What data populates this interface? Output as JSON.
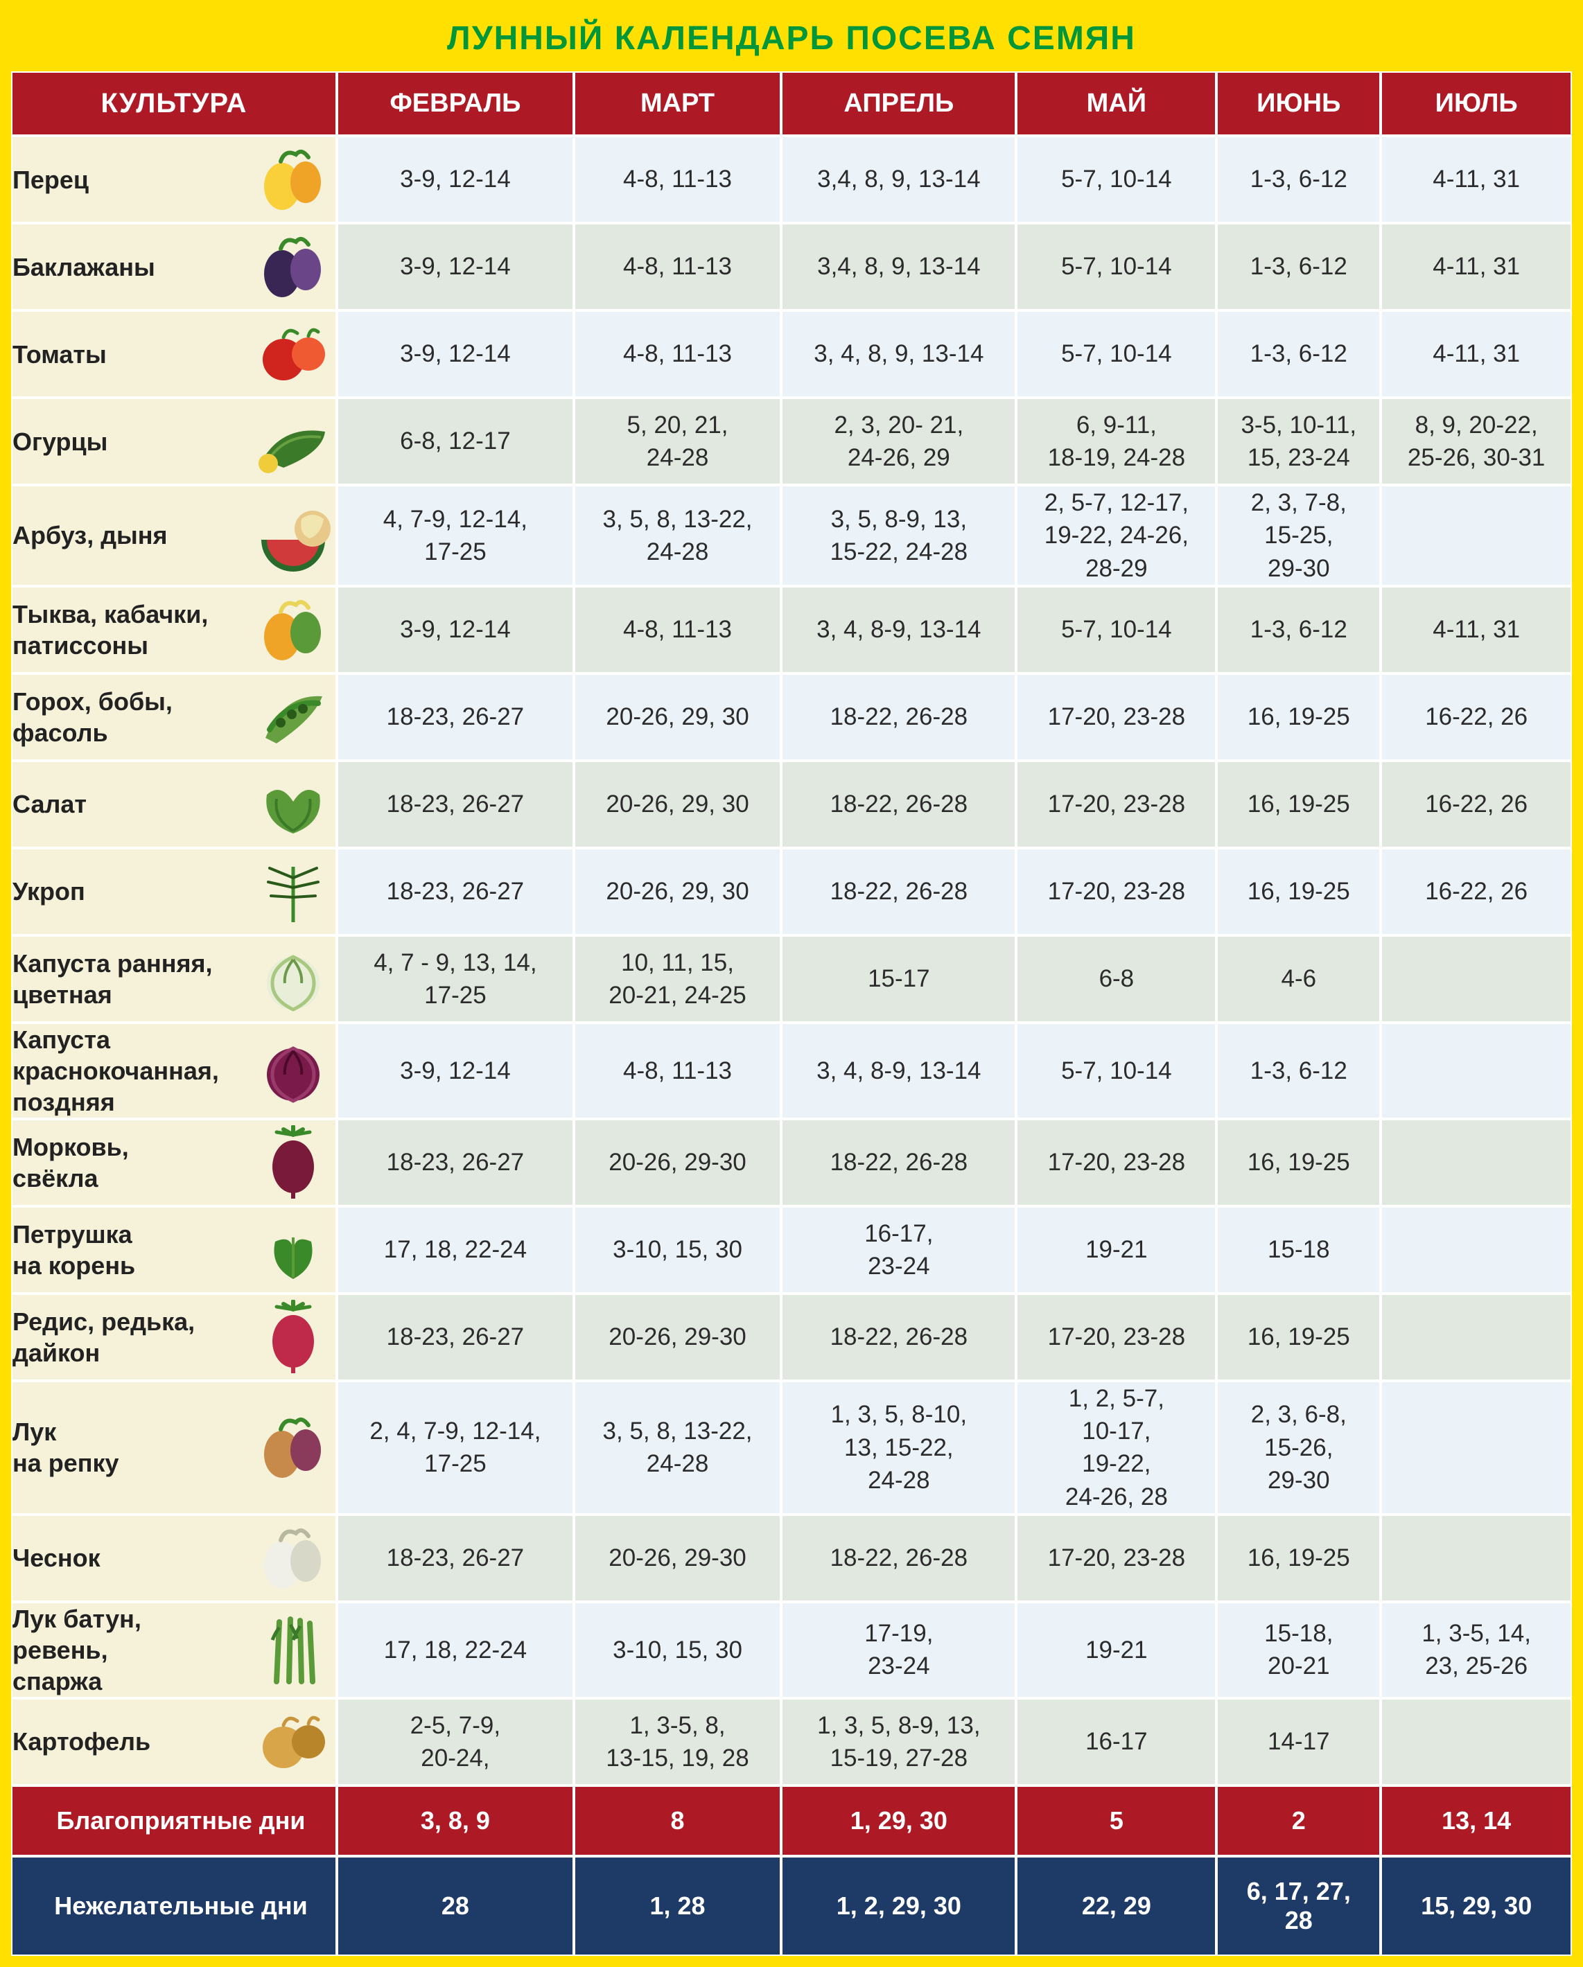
{
  "title": "ЛУННЫЙ КАЛЕНДАРЬ ПОСЕВА СЕМЯН",
  "palette": {
    "outer_bg": "#ffe000",
    "title_color": "#009639",
    "header_bg": "#ad1a26",
    "favorable_bg": "#ad1a26",
    "unfavorable_bg": "#1e3a66",
    "name_col_bg": "#f5f2d9",
    "row_even_bg": "#ebf2f8",
    "row_odd_bg": "#e1e8e0",
    "cell_border": "#ffffff",
    "text_color": "#2b2b2b",
    "title_fontsize": 48,
    "header_fontsize": 38,
    "body_fontsize": 35
  },
  "headers": {
    "culture": "КУЛЬТУРА",
    "months": [
      "ФЕВРАЛЬ",
      "МАРТ",
      "АПРЕЛЬ",
      "МАЙ",
      "ИЮНЬ",
      "ИЮЛЬ"
    ]
  },
  "rows": [
    {
      "name": "Перец",
      "icon": "pepper",
      "values": [
        "3-9, 12-14",
        "4-8, 11-13",
        "3,4, 8, 9, 13-14",
        "5-7, 10-14",
        "1-3, 6-12",
        "4-11, 31"
      ]
    },
    {
      "name": "Баклажаны",
      "icon": "eggplant",
      "values": [
        "3-9, 12-14",
        "4-8, 11-13",
        "3,4, 8, 9, 13-14",
        "5-7, 10-14",
        "1-3, 6-12",
        "4-11, 31"
      ]
    },
    {
      "name": "Томаты",
      "icon": "tomato",
      "values": [
        "3-9, 12-14",
        "4-8, 11-13",
        "3, 4, 8, 9, 13-14",
        "5-7, 10-14",
        "1-3, 6-12",
        "4-11, 31"
      ]
    },
    {
      "name": "Огурцы",
      "icon": "cucumber",
      "values": [
        "6-8, 12-17",
        "5, 20, 21,\n24-28",
        "2, 3, 20- 21,\n24-26, 29",
        "6, 9-11,\n18-19, 24-28",
        "3-5, 10-11,\n15, 23-24",
        "8, 9, 20-22,\n25-26, 30-31"
      ]
    },
    {
      "name": "Арбуз, дыня",
      "icon": "melon",
      "values": [
        "4, 7-9, 12-14,\n17-25",
        "3, 5, 8, 13-22,\n24-28",
        "3, 5, 8-9, 13,\n15-22, 24-28",
        "2, 5-7, 12-17,\n19-22, 24-26,\n28-29",
        "2, 3, 7-8,\n15-25,\n29-30",
        ""
      ]
    },
    {
      "name": "Тыква, кабачки,\nпатиссоны",
      "icon": "squash",
      "values": [
        "3-9, 12-14",
        "4-8, 11-13",
        "3, 4, 8-9, 13-14",
        "5-7, 10-14",
        "1-3, 6-12",
        "4-11, 31"
      ]
    },
    {
      "name": "Горох, бобы,\nфасоль",
      "icon": "beans",
      "values": [
        "18-23, 26-27",
        "20-26, 29, 30",
        "18-22, 26-28",
        "17-20, 23-28",
        "16, 19-25",
        "16-22, 26"
      ]
    },
    {
      "name": "Салат",
      "icon": "lettuce",
      "values": [
        "18-23, 26-27",
        "20-26, 29, 30",
        "18-22, 26-28",
        "17-20, 23-28",
        "16, 19-25",
        "16-22, 26"
      ]
    },
    {
      "name": "Укроп",
      "icon": "dill",
      "values": [
        "18-23, 26-27",
        "20-26, 29, 30",
        "18-22, 26-28",
        "17-20, 23-28",
        "16, 19-25",
        "16-22, 26"
      ]
    },
    {
      "name": "Капуста ранняя,\nцветная",
      "icon": "cabbage-white",
      "values": [
        "4, 7 - 9, 13, 14,\n17-25",
        "10, 11, 15,\n20-21, 24-25",
        "15-17",
        "6-8",
        "4-6",
        ""
      ]
    },
    {
      "name": "Капуста\nкраснокочанная,\nпоздняя",
      "icon": "cabbage-red",
      "values": [
        "3-9, 12-14",
        "4-8, 11-13",
        "3, 4, 8-9, 13-14",
        "5-7, 10-14",
        "1-3, 6-12",
        ""
      ]
    },
    {
      "name": "Морковь,\nсвёкла",
      "icon": "beet",
      "values": [
        "18-23, 26-27",
        "20-26, 29-30",
        "18-22, 26-28",
        "17-20, 23-28",
        "16, 19-25",
        ""
      ]
    },
    {
      "name": "Петрушка\nна корень",
      "icon": "parsley",
      "values": [
        "17, 18, 22-24",
        "3-10, 15, 30",
        "16-17,\n23-24",
        "19-21",
        "15-18",
        ""
      ]
    },
    {
      "name": "Редис, редька, дайкон",
      "icon": "radish",
      "values": [
        "18-23, 26-27",
        "20-26, 29-30",
        "18-22, 26-28",
        "17-20, 23-28",
        "16, 19-25",
        ""
      ]
    },
    {
      "name": "Лук\nна репку",
      "icon": "onion",
      "values": [
        "2, 4, 7-9, 12-14,\n17-25",
        "3, 5, 8, 13-22,\n24-28",
        "1, 3, 5, 8-10,\n13, 15-22,\n24-28",
        "1, 2, 5-7,\n10-17,\n19-22,\n24-26, 28",
        "2, 3, 6-8,\n15-26,\n29-30",
        ""
      ]
    },
    {
      "name": "Чеснок",
      "icon": "garlic",
      "values": [
        "18-23, 26-27",
        "20-26, 29-30",
        "18-22, 26-28",
        "17-20, 23-28",
        "16, 19-25",
        ""
      ]
    },
    {
      "name": "Лук батун, ревень,\nспаржа",
      "icon": "asparagus",
      "values": [
        "17, 18, 22-24",
        "3-10, 15, 30",
        "17-19,\n23-24",
        "19-21",
        "15-18,\n20-21",
        "1, 3-5, 14,\n23, 25-26"
      ]
    },
    {
      "name": "Картофель",
      "icon": "potato",
      "values": [
        "2-5, 7-9,\n20-24,",
        "1, 3-5, 8,\n13-15, 19, 28",
        "1, 3, 5, 8-9, 13,\n15-19, 27-28",
        "16-17",
        "14-17",
        ""
      ]
    }
  ],
  "summary": {
    "favorable": {
      "label": "Благоприятные дни",
      "values": [
        "3, 8, 9",
        "8",
        "1, 29, 30",
        "5",
        "2",
        "13, 14"
      ]
    },
    "unfavorable": {
      "label": "Нежелательные дни",
      "values": [
        "28",
        "1, 28",
        "1, 2, 29, 30",
        "22, 29",
        "6, 17, 27,\n28",
        "15, 29, 30"
      ]
    }
  },
  "icons": {
    "pepper": {
      "fills": [
        "#f9cf3a",
        "#f0a427",
        "#3a8a2a"
      ],
      "kind": "pair-bulb"
    },
    "eggplant": {
      "fills": [
        "#3a2655",
        "#6a4688",
        "#3a8a2a"
      ],
      "kind": "pair-bulb"
    },
    "tomato": {
      "fills": [
        "#d0251f",
        "#ef5a33",
        "#3a8a2a"
      ],
      "kind": "pair-round"
    },
    "cucumber": {
      "fills": [
        "#3a7a28",
        "#66a040",
        "#f0cc3a"
      ],
      "kind": "longfruit"
    },
    "melon": {
      "fills": [
        "#2a6a2a",
        "#d03a3a",
        "#e8c98a",
        "#f2e6b0"
      ],
      "kind": "watermelon"
    },
    "squash": {
      "fills": [
        "#f0a427",
        "#5a9a38",
        "#e8d55a"
      ],
      "kind": "pair-bulb"
    },
    "beans": {
      "fills": [
        "#3a8a2a",
        "#66a040",
        "#2a5a1a"
      ],
      "kind": "pods"
    },
    "lettuce": {
      "fills": [
        "#5a9a38",
        "#3a7a28",
        "#2a5a1a"
      ],
      "kind": "leafy"
    },
    "dill": {
      "fills": [
        "#3a8a2a",
        "#2a5a1a"
      ],
      "kind": "fronds"
    },
    "cabbage-white": {
      "fills": [
        "#e8eed8",
        "#a8c880",
        "#6a9a4a"
      ],
      "kind": "round-leaf"
    },
    "cabbage-red": {
      "fills": [
        "#7a1a4a",
        "#9a3a6a",
        "#4a0a2a"
      ],
      "kind": "round-leaf"
    },
    "beet": {
      "fills": [
        "#7a1a3a",
        "#3a8a2a",
        "#d07a2a"
      ],
      "kind": "root-top"
    },
    "parsley": {
      "fills": [
        "#3a8a2a",
        "#5a9a38"
      ],
      "kind": "leafy-small"
    },
    "radish": {
      "fills": [
        "#c02a4a",
        "#3a8a2a",
        "#e8a8b8"
      ],
      "kind": "root-top"
    },
    "onion": {
      "fills": [
        "#c88a4a",
        "#8a3a5a",
        "#3a8a2a"
      ],
      "kind": "pair-bulb"
    },
    "garlic": {
      "fills": [
        "#f0f0e8",
        "#d8d8c8",
        "#b8b8a0"
      ],
      "kind": "pair-bulb"
    },
    "asparagus": {
      "fills": [
        "#5a9a38",
        "#3a7a28"
      ],
      "kind": "stalks"
    },
    "potato": {
      "fills": [
        "#d8a548",
        "#b8852a",
        "#c8953a"
      ],
      "kind": "pair-round"
    }
  }
}
